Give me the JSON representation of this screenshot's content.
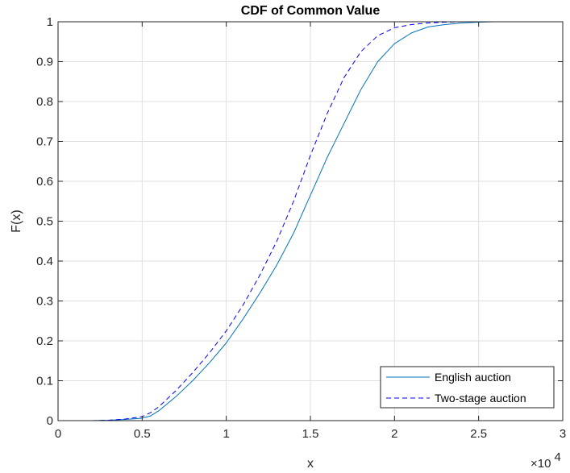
{
  "chart_data": {
    "type": "line",
    "title": "CDF of Common Value",
    "xlabel": "x",
    "ylabel": "F(x)",
    "x_multiplier_text": "×10",
    "x_multiplier_exponent": "4",
    "xlim": [
      0,
      3
    ],
    "ylim": [
      0,
      1
    ],
    "xticks": [
      0,
      0.5,
      1,
      1.5,
      2,
      2.5,
      3
    ],
    "xtick_labels": [
      "0",
      "0.5",
      "1",
      "1.5",
      "2",
      "2.5",
      "3"
    ],
    "yticks": [
      0,
      0.1,
      0.2,
      0.3,
      0.4,
      0.5,
      0.6,
      0.7,
      0.8,
      0.9,
      1
    ],
    "ytick_labels": [
      "0",
      "0.1",
      "0.2",
      "0.3",
      "0.4",
      "0.5",
      "0.6",
      "0.7",
      "0.8",
      "0.9",
      "1"
    ],
    "grid": true,
    "legend_position": "bottom-right",
    "series": [
      {
        "name": "English auction",
        "style": "solid",
        "color": "#0072bd",
        "x": [
          0.2,
          0.3,
          0.4,
          0.5,
          0.55,
          0.6,
          0.7,
          0.8,
          0.9,
          1.0,
          1.1,
          1.2,
          1.3,
          1.4,
          1.5,
          1.6,
          1.7,
          1.8,
          1.9,
          2.0,
          2.1,
          2.2,
          2.3,
          2.4,
          2.5,
          2.6,
          2.7,
          2.85
        ],
        "y": [
          0.0,
          0.001,
          0.003,
          0.006,
          0.012,
          0.025,
          0.06,
          0.1,
          0.145,
          0.195,
          0.255,
          0.32,
          0.39,
          0.47,
          0.565,
          0.66,
          0.745,
          0.83,
          0.9,
          0.945,
          0.972,
          0.987,
          0.993,
          0.997,
          0.999,
          1.0,
          1.0,
          1.0
        ]
      },
      {
        "name": "Two-stage auction",
        "style": "dashed",
        "color": "#0000ff",
        "x": [
          0.2,
          0.3,
          0.4,
          0.5,
          0.55,
          0.6,
          0.7,
          0.8,
          0.9,
          1.0,
          1.1,
          1.2,
          1.3,
          1.4,
          1.5,
          1.6,
          1.7,
          1.8,
          1.9,
          2.0,
          2.1,
          2.2,
          2.3,
          2.4,
          2.5,
          2.6,
          2.7,
          2.85
        ],
        "y": [
          0.0,
          0.001,
          0.004,
          0.01,
          0.02,
          0.035,
          0.075,
          0.12,
          0.17,
          0.225,
          0.29,
          0.365,
          0.45,
          0.55,
          0.665,
          0.77,
          0.86,
          0.925,
          0.965,
          0.985,
          0.993,
          0.997,
          0.999,
          1.0,
          1.0,
          1.0,
          1.0,
          1.0
        ]
      }
    ]
  }
}
